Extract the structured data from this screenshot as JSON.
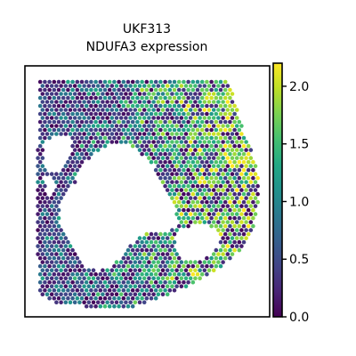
{
  "chart_data": {
    "type": "spatial_scatter",
    "title_lines": [
      "UKF313",
      "NDUFA3 expression"
    ],
    "colormap": "viridis",
    "value_range": [
      0.0,
      2.2
    ],
    "colorbar_ticks": [
      {
        "value": 0.0,
        "label": "0.0"
      },
      {
        "value": 0.5,
        "label": "0.5"
      },
      {
        "value": 1.0,
        "label": "1.0"
      },
      {
        "value": 1.5,
        "label": "1.5"
      },
      {
        "value": 2.0,
        "label": "2.0"
      }
    ],
    "axes_frame": true,
    "x_ticks_shown": false,
    "y_ticks_shown": false
  }
}
